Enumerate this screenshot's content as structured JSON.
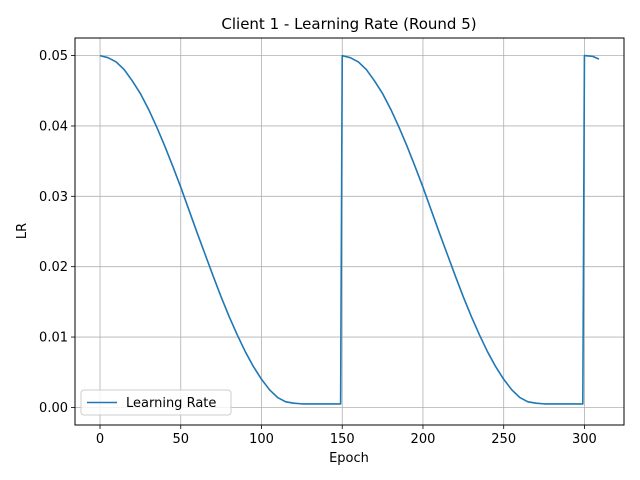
{
  "chart_data": {
    "type": "line",
    "title": "Client 1 - Learning Rate (Round 5)",
    "xlabel": "Epoch",
    "ylabel": "LR",
    "xlim": [
      -15.5,
      324.5
    ],
    "ylim": [
      -0.0025,
      0.0525
    ],
    "xticks": [
      0,
      50,
      100,
      150,
      200,
      250,
      300
    ],
    "xtick_labels": [
      "0",
      "50",
      "100",
      "150",
      "200",
      "250",
      "300"
    ],
    "yticks": [
      0.0,
      0.01,
      0.02,
      0.03,
      0.04,
      0.05
    ],
    "ytick_labels": [
      "0.00",
      "0.01",
      "0.02",
      "0.03",
      "0.04",
      "0.05"
    ],
    "grid": true,
    "legend_position": "lower-left",
    "line_color": "#1f77b4",
    "series": [
      {
        "name": "Learning Rate",
        "x": [
          0,
          5,
          10,
          15,
          20,
          25,
          30,
          35,
          40,
          45,
          50,
          55,
          60,
          65,
          70,
          75,
          80,
          85,
          90,
          95,
          100,
          105,
          110,
          115,
          120,
          125,
          130,
          135,
          140,
          145,
          149,
          150,
          155,
          160,
          165,
          170,
          175,
          180,
          185,
          190,
          195,
          200,
          205,
          210,
          215,
          220,
          225,
          230,
          235,
          240,
          245,
          250,
          255,
          260,
          265,
          270,
          275,
          280,
          285,
          290,
          295,
          299,
          300,
          305,
          309
        ],
        "y": [
          0.05,
          0.0497,
          0.0491,
          0.048,
          0.0464,
          0.0446,
          0.0424,
          0.0399,
          0.0372,
          0.0343,
          0.0313,
          0.0281,
          0.0249,
          0.0218,
          0.0187,
          0.0157,
          0.0129,
          0.0103,
          0.0079,
          0.0058,
          0.004,
          0.0025,
          0.0014,
          0.0008,
          0.0006,
          0.0005,
          0.0005,
          0.0005,
          0.0005,
          0.0005,
          0.0005,
          0.05,
          0.0497,
          0.0491,
          0.048,
          0.0464,
          0.0446,
          0.0424,
          0.0399,
          0.0372,
          0.0343,
          0.0313,
          0.0281,
          0.0249,
          0.0218,
          0.0187,
          0.0157,
          0.0129,
          0.0103,
          0.0079,
          0.0058,
          0.004,
          0.0025,
          0.0014,
          0.0008,
          0.0006,
          0.0005,
          0.0005,
          0.0005,
          0.0005,
          0.0005,
          0.0005,
          0.05,
          0.0499,
          0.0495
        ]
      }
    ]
  }
}
